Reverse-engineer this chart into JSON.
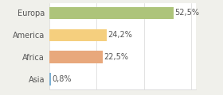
{
  "categories": [
    "Asia",
    "Africa",
    "America",
    "Europa"
  ],
  "values": [
    0.8,
    22.5,
    24.2,
    52.5
  ],
  "labels": [
    "0,8%",
    "22,5%",
    "24,2%",
    "52,5%"
  ],
  "bar_colors": [
    "#7bafd4",
    "#e8a87c",
    "#f5cf7e",
    "#adc47a"
  ],
  "figure_facecolor": "#f0f0eb",
  "axes_facecolor": "#ffffff",
  "xlim": [
    0,
    62
  ],
  "bar_height": 0.55,
  "label_fontsize": 7,
  "tick_fontsize": 7,
  "label_color": "#555555",
  "tick_color": "#555555",
  "grid_color": "#d8d8d8",
  "spine_color": "#d8d8d8"
}
